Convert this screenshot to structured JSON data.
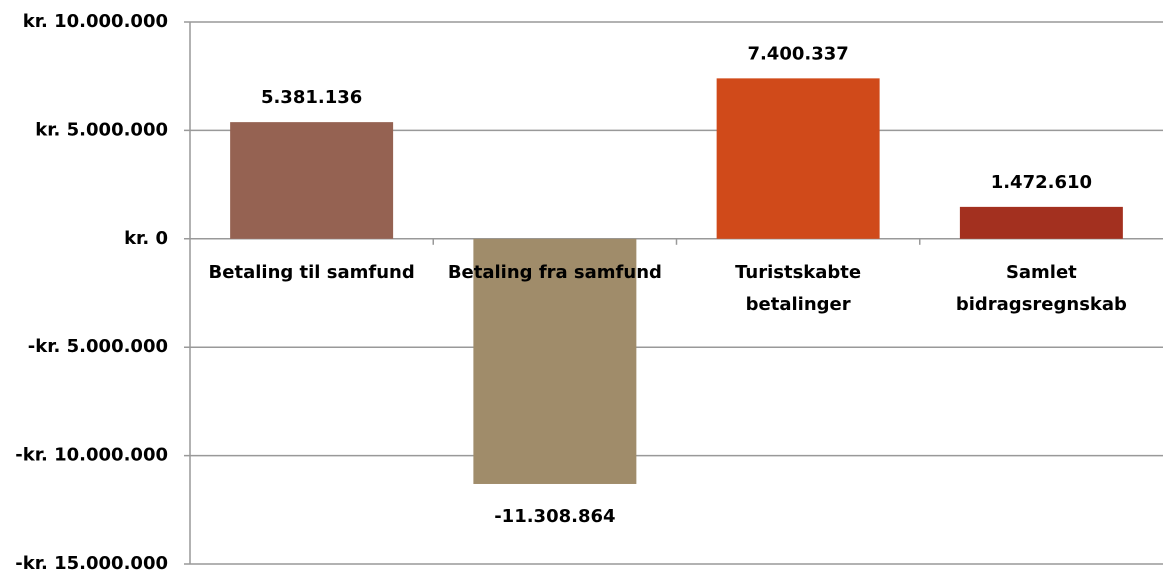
{
  "chart_data": {
    "type": "bar",
    "categories": [
      "Betaling til samfund",
      "Betaling fra samfund",
      "Turistskabte betalinger",
      "Samlet bidragsregnskab"
    ],
    "values": [
      5381136,
      -11308864,
      7400337,
      1472610
    ],
    "value_labels": [
      "5.381.136",
      "-11.308.864",
      "7.400.337",
      "1.472.610"
    ],
    "colors": [
      "#956252",
      "#a08c6a",
      "#d04a1a",
      "#a3301f"
    ],
    "ylim": [
      -15000000,
      10000000
    ],
    "yticks": [
      {
        "value": -15000000,
        "label": "-kr. 15.000.000"
      },
      {
        "value": -10000000,
        "label": "-kr. 10.000.000"
      },
      {
        "value": -5000000,
        "label": "-kr. 5.000.000"
      },
      {
        "value": 0,
        "label": "kr. 0"
      },
      {
        "value": 5000000,
        "label": "kr. 5.000.000"
      },
      {
        "value": 10000000,
        "label": "kr. 10.000.000"
      }
    ],
    "grid": true
  }
}
